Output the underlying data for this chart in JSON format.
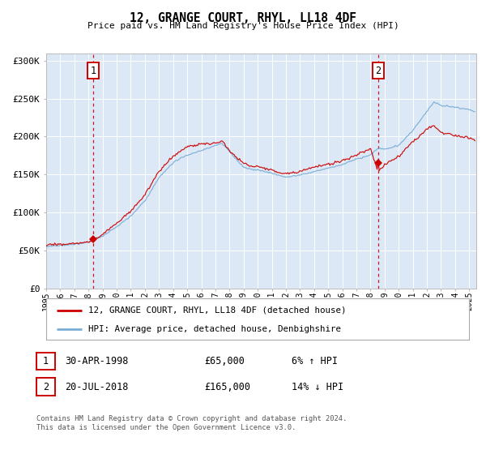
{
  "title": "12, GRANGE COURT, RHYL, LL18 4DF",
  "subtitle": "Price paid vs. HM Land Registry's House Price Index (HPI)",
  "legend_line1": "12, GRANGE COURT, RHYL, LL18 4DF (detached house)",
  "legend_line2": "HPI: Average price, detached house, Denbighshire",
  "sale1_date_str": "30-APR-1998",
  "sale1_price_str": "£65,000",
  "sale1_hpi_str": "6% ↑ HPI",
  "sale1_year": 1998.33,
  "sale1_value": 65000,
  "sale2_date_str": "20-JUL-2018",
  "sale2_price_str": "£165,000",
  "sale2_hpi_str": "14% ↓ HPI",
  "sale2_year": 2018.55,
  "sale2_value": 165000,
  "hpi_color": "#7aaed6",
  "price_color": "#cc0000",
  "vline_color": "#cc0000",
  "plot_bg_color": "#dce8f5",
  "grid_color": "#ffffff",
  "footer": "Contains HM Land Registry data © Crown copyright and database right 2024.\nThis data is licensed under the Open Government Licence v3.0.",
  "ylim": [
    0,
    310000
  ],
  "xlim_start": 1995.0,
  "xlim_end": 2025.5,
  "yticks": [
    0,
    50000,
    100000,
    150000,
    200000,
    250000,
    300000
  ],
  "ytick_labels": [
    "£0",
    "£50K",
    "£100K",
    "£150K",
    "£200K",
    "£250K",
    "£300K"
  ],
  "xtick_years": [
    1995,
    1996,
    1997,
    1998,
    1999,
    2000,
    2001,
    2002,
    2003,
    2004,
    2005,
    2006,
    2007,
    2008,
    2009,
    2010,
    2011,
    2012,
    2013,
    2014,
    2015,
    2016,
    2017,
    2018,
    2019,
    2020,
    2021,
    2022,
    2023,
    2024,
    2025
  ]
}
